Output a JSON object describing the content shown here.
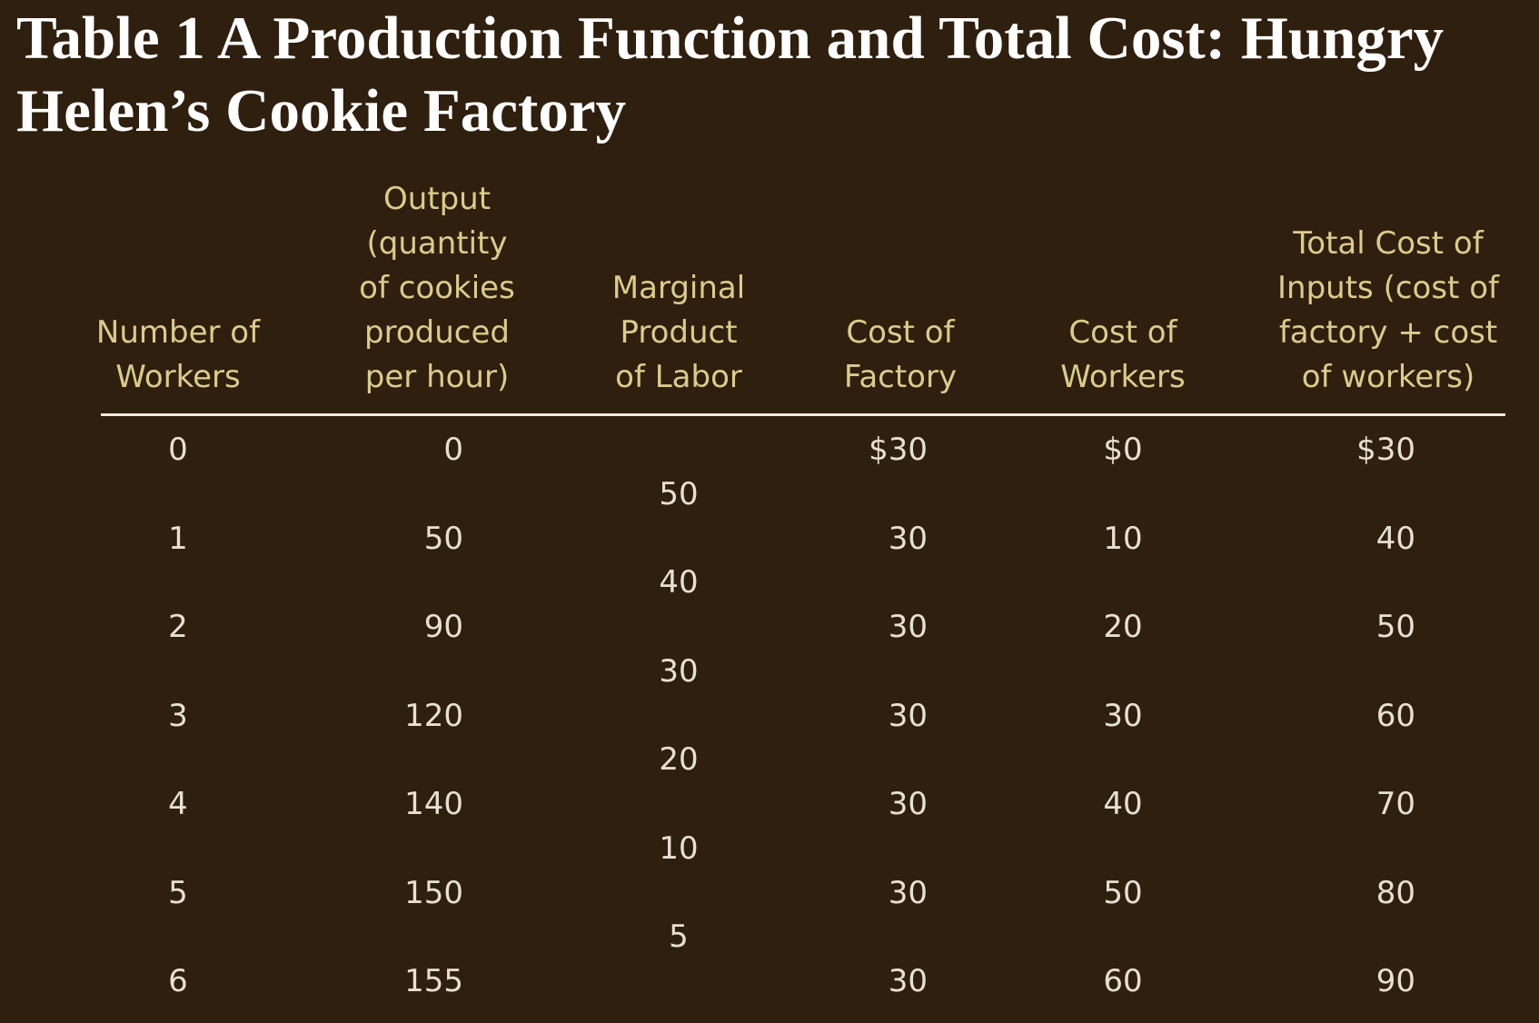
{
  "title": "Table 1  A Production Function and Total Cost: Hungry Helen’s Cookie Factory",
  "headers": [
    "Number of\nWorkers",
    "Output\n(quantity\nof cookies\nproduced\nper hour)",
    "Marginal\nProduct\nof Labor",
    "Cost of\nFactory",
    "Cost of\nWorkers",
    "Total Cost of\nInputs (cost of\nfactory + cost\nof workers)"
  ],
  "rows": [
    {
      "workers": "0",
      "output": "0",
      "factory": "$30",
      "worker_cost": "$0",
      "total": "$30"
    },
    {
      "workers": "1",
      "output": "50",
      "factory": "30",
      "worker_cost": "10",
      "total": "40"
    },
    {
      "workers": "2",
      "output": "90",
      "factory": "30",
      "worker_cost": "20",
      "total": "50"
    },
    {
      "workers": "3",
      "output": "120",
      "factory": "30",
      "worker_cost": "30",
      "total": "60"
    },
    {
      "workers": "4",
      "output": "140",
      "factory": "30",
      "worker_cost": "40",
      "total": "70"
    },
    {
      "workers": "5",
      "output": "150",
      "factory": "30",
      "worker_cost": "50",
      "total": "80"
    },
    {
      "workers": "6",
      "output": "155",
      "factory": "30",
      "worker_cost": "60",
      "total": "90"
    }
  ],
  "marginal_product": [
    "50",
    "40",
    "30",
    "20",
    "10",
    "5"
  ]
}
